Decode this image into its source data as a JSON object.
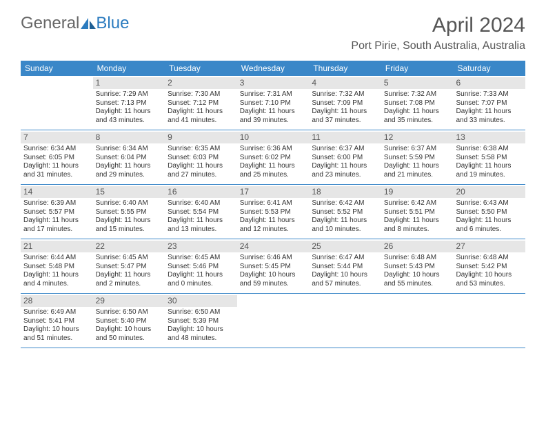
{
  "brand": {
    "part1": "General",
    "part2": "Blue"
  },
  "title": "April 2024",
  "location": "Port Pirie, South Australia, Australia",
  "colors": {
    "header_bg": "#3a87c8",
    "daynum_bg": "#e6e6e6",
    "text": "#333333",
    "brand_gray": "#666666",
    "brand_blue": "#2b7bbf"
  },
  "day_names": [
    "Sunday",
    "Monday",
    "Tuesday",
    "Wednesday",
    "Thursday",
    "Friday",
    "Saturday"
  ],
  "weeks": [
    [
      null,
      {
        "n": "1",
        "sr": "7:29 AM",
        "ss": "7:13 PM",
        "dl": "11 hours and 43 minutes."
      },
      {
        "n": "2",
        "sr": "7:30 AM",
        "ss": "7:12 PM",
        "dl": "11 hours and 41 minutes."
      },
      {
        "n": "3",
        "sr": "7:31 AM",
        "ss": "7:10 PM",
        "dl": "11 hours and 39 minutes."
      },
      {
        "n": "4",
        "sr": "7:32 AM",
        "ss": "7:09 PM",
        "dl": "11 hours and 37 minutes."
      },
      {
        "n": "5",
        "sr": "7:32 AM",
        "ss": "7:08 PM",
        "dl": "11 hours and 35 minutes."
      },
      {
        "n": "6",
        "sr": "7:33 AM",
        "ss": "7:07 PM",
        "dl": "11 hours and 33 minutes."
      }
    ],
    [
      {
        "n": "7",
        "sr": "6:34 AM",
        "ss": "6:05 PM",
        "dl": "11 hours and 31 minutes."
      },
      {
        "n": "8",
        "sr": "6:34 AM",
        "ss": "6:04 PM",
        "dl": "11 hours and 29 minutes."
      },
      {
        "n": "9",
        "sr": "6:35 AM",
        "ss": "6:03 PM",
        "dl": "11 hours and 27 minutes."
      },
      {
        "n": "10",
        "sr": "6:36 AM",
        "ss": "6:02 PM",
        "dl": "11 hours and 25 minutes."
      },
      {
        "n": "11",
        "sr": "6:37 AM",
        "ss": "6:00 PM",
        "dl": "11 hours and 23 minutes."
      },
      {
        "n": "12",
        "sr": "6:37 AM",
        "ss": "5:59 PM",
        "dl": "11 hours and 21 minutes."
      },
      {
        "n": "13",
        "sr": "6:38 AM",
        "ss": "5:58 PM",
        "dl": "11 hours and 19 minutes."
      }
    ],
    [
      {
        "n": "14",
        "sr": "6:39 AM",
        "ss": "5:57 PM",
        "dl": "11 hours and 17 minutes."
      },
      {
        "n": "15",
        "sr": "6:40 AM",
        "ss": "5:55 PM",
        "dl": "11 hours and 15 minutes."
      },
      {
        "n": "16",
        "sr": "6:40 AM",
        "ss": "5:54 PM",
        "dl": "11 hours and 13 minutes."
      },
      {
        "n": "17",
        "sr": "6:41 AM",
        "ss": "5:53 PM",
        "dl": "11 hours and 12 minutes."
      },
      {
        "n": "18",
        "sr": "6:42 AM",
        "ss": "5:52 PM",
        "dl": "11 hours and 10 minutes."
      },
      {
        "n": "19",
        "sr": "6:42 AM",
        "ss": "5:51 PM",
        "dl": "11 hours and 8 minutes."
      },
      {
        "n": "20",
        "sr": "6:43 AM",
        "ss": "5:50 PM",
        "dl": "11 hours and 6 minutes."
      }
    ],
    [
      {
        "n": "21",
        "sr": "6:44 AM",
        "ss": "5:48 PM",
        "dl": "11 hours and 4 minutes."
      },
      {
        "n": "22",
        "sr": "6:45 AM",
        "ss": "5:47 PM",
        "dl": "11 hours and 2 minutes."
      },
      {
        "n": "23",
        "sr": "6:45 AM",
        "ss": "5:46 PM",
        "dl": "11 hours and 0 minutes."
      },
      {
        "n": "24",
        "sr": "6:46 AM",
        "ss": "5:45 PM",
        "dl": "10 hours and 59 minutes."
      },
      {
        "n": "25",
        "sr": "6:47 AM",
        "ss": "5:44 PM",
        "dl": "10 hours and 57 minutes."
      },
      {
        "n": "26",
        "sr": "6:48 AM",
        "ss": "5:43 PM",
        "dl": "10 hours and 55 minutes."
      },
      {
        "n": "27",
        "sr": "6:48 AM",
        "ss": "5:42 PM",
        "dl": "10 hours and 53 minutes."
      }
    ],
    [
      {
        "n": "28",
        "sr": "6:49 AM",
        "ss": "5:41 PM",
        "dl": "10 hours and 51 minutes."
      },
      {
        "n": "29",
        "sr": "6:50 AM",
        "ss": "5:40 PM",
        "dl": "10 hours and 50 minutes."
      },
      {
        "n": "30",
        "sr": "6:50 AM",
        "ss": "5:39 PM",
        "dl": "10 hours and 48 minutes."
      },
      null,
      null,
      null,
      null
    ]
  ],
  "labels": {
    "sunrise": "Sunrise:",
    "sunset": "Sunset:",
    "daylight": "Daylight:"
  }
}
